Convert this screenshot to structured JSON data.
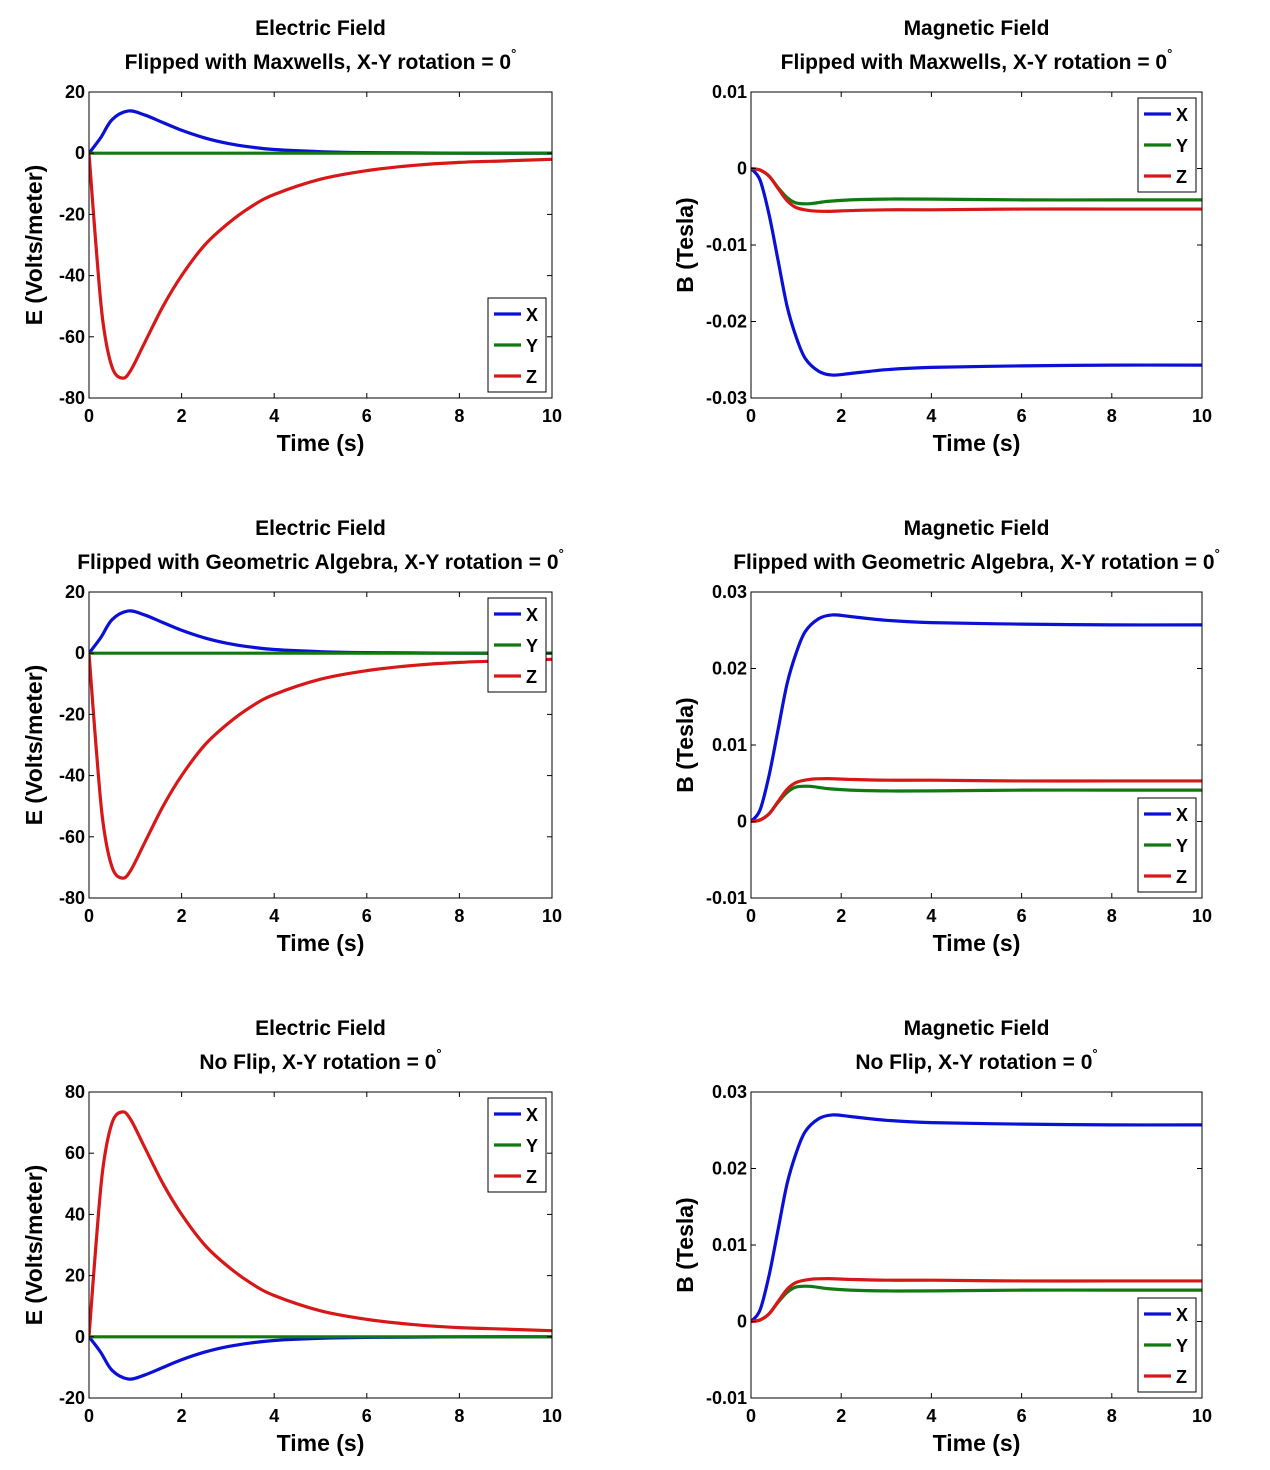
{
  "figure": {
    "colors": {
      "X": "#0a10d6",
      "Y": "#107a10",
      "Z": "#d81818"
    }
  },
  "chart_data": [
    {
      "type": "line",
      "title": "Electric Field",
      "subtitle": "Flipped with Maxwells, X-Y rotation = 0",
      "subtitle_superscript": "°",
      "xlabel": "Time (s)",
      "ylabel": "E (Volts/meter)",
      "xlim": [
        0,
        10
      ],
      "ylim": [
        -80,
        20
      ],
      "xticks": [
        0,
        2,
        4,
        6,
        8,
        10
      ],
      "yticks": [
        20,
        0,
        -20,
        -40,
        -60,
        -80
      ],
      "ytick_labels": [
        "20",
        "0",
        "-20",
        "-40",
        "-60",
        "-80"
      ],
      "legend_position": "bottom-right",
      "series": [
        {
          "name": "X",
          "x": [
            0,
            0.25,
            0.5,
            0.85,
            1.2,
            1.6,
            2,
            2.5,
            3,
            3.5,
            4,
            5,
            6,
            7,
            8,
            10
          ],
          "values": [
            0,
            5,
            11,
            13.8,
            12.5,
            10,
            7.5,
            5,
            3.2,
            2,
            1.2,
            0.5,
            0.2,
            0.1,
            0,
            0
          ]
        },
        {
          "name": "Y",
          "x": [
            0,
            10
          ],
          "values": [
            0,
            0
          ]
        },
        {
          "name": "Z",
          "x": [
            0,
            0.15,
            0.3,
            0.5,
            0.72,
            0.9,
            1.2,
            1.6,
            2,
            2.5,
            3,
            3.5,
            4,
            5,
            6,
            7,
            8,
            9,
            10
          ],
          "values": [
            0,
            -30,
            -55,
            -70,
            -73.5,
            -71,
            -62,
            -50,
            -40,
            -30,
            -23,
            -17.5,
            -13.5,
            -8.5,
            -5.7,
            -4,
            -3,
            -2.5,
            -2
          ]
        }
      ]
    },
    {
      "type": "line",
      "title": "Magnetic Field",
      "subtitle": "Flipped with Maxwells, X-Y rotation = 0",
      "subtitle_superscript": "°",
      "xlabel": "Time (s)",
      "ylabel": "B (Tesla)",
      "xlim": [
        0,
        10
      ],
      "ylim": [
        -0.03,
        0.01
      ],
      "xticks": [
        0,
        2,
        4,
        6,
        8,
        10
      ],
      "yticks": [
        0.01,
        0,
        -0.01,
        -0.02,
        -0.03
      ],
      "ytick_labels": [
        "0.01",
        "0",
        "-0.01",
        "-0.02",
        "-0.03"
      ],
      "legend_position": "top-right",
      "series": [
        {
          "name": "X",
          "x": [
            0,
            0.2,
            0.4,
            0.6,
            0.8,
            1,
            1.2,
            1.5,
            1.8,
            2.2,
            3,
            4,
            6,
            8,
            10
          ],
          "values": [
            0,
            -0.0015,
            -0.006,
            -0.012,
            -0.018,
            -0.022,
            -0.0248,
            -0.0265,
            -0.027,
            -0.0268,
            -0.0263,
            -0.026,
            -0.0258,
            -0.0257,
            -0.0257
          ]
        },
        {
          "name": "Y",
          "x": [
            0,
            0.2,
            0.4,
            0.6,
            0.8,
            1,
            1.3,
            1.7,
            2.2,
            3,
            4,
            6,
            8,
            10
          ],
          "values": [
            0,
            -0.0002,
            -0.001,
            -0.0025,
            -0.0038,
            -0.0045,
            -0.0046,
            -0.0043,
            -0.0041,
            -0.004,
            -0.004,
            -0.0041,
            -0.0041,
            -0.0041
          ]
        },
        {
          "name": "Z",
          "x": [
            0,
            0.2,
            0.4,
            0.6,
            0.8,
            1,
            1.3,
            1.7,
            2.2,
            3,
            4,
            6,
            8,
            10
          ],
          "values": [
            0,
            -0.0002,
            -0.001,
            -0.0026,
            -0.0042,
            -0.0051,
            -0.0055,
            -0.0056,
            -0.0055,
            -0.0054,
            -0.0054,
            -0.0053,
            -0.0053,
            -0.0053
          ]
        }
      ]
    },
    {
      "type": "line",
      "title": "Electric Field",
      "subtitle": "Flipped with Geometric Algebra, X-Y rotation = 0",
      "subtitle_superscript": "°",
      "xlabel": "Time (s)",
      "ylabel": "E (Volts/meter)",
      "xlim": [
        0,
        10
      ],
      "ylim": [
        -80,
        20
      ],
      "xticks": [
        0,
        2,
        4,
        6,
        8,
        10
      ],
      "yticks": [
        20,
        0,
        -20,
        -40,
        -60,
        -80
      ],
      "ytick_labels": [
        "20",
        "0",
        "-20",
        "-40",
        "-60",
        "-80"
      ],
      "legend_position": "top-right",
      "series": [
        {
          "name": "X",
          "x": [
            0,
            0.25,
            0.5,
            0.85,
            1.2,
            1.6,
            2,
            2.5,
            3,
            3.5,
            4,
            5,
            6,
            7,
            8,
            10
          ],
          "values": [
            0,
            5,
            11,
            13.8,
            12.5,
            10,
            7.5,
            5,
            3.2,
            2,
            1.2,
            0.5,
            0.2,
            0.1,
            0,
            0
          ]
        },
        {
          "name": "Y",
          "x": [
            0,
            10
          ],
          "values": [
            0,
            0
          ]
        },
        {
          "name": "Z",
          "x": [
            0,
            0.15,
            0.3,
            0.5,
            0.72,
            0.9,
            1.2,
            1.6,
            2,
            2.5,
            3,
            3.5,
            4,
            5,
            6,
            7,
            8,
            9,
            10
          ],
          "values": [
            0,
            -30,
            -55,
            -70,
            -73.5,
            -71,
            -62,
            -50,
            -40,
            -30,
            -23,
            -17.5,
            -13.5,
            -8.5,
            -5.7,
            -4,
            -3,
            -2.5,
            -2
          ]
        }
      ]
    },
    {
      "type": "line",
      "title": "Magnetic Field",
      "subtitle": "Flipped with Geometric Algebra, X-Y rotation = 0",
      "subtitle_superscript": "°",
      "xlabel": "Time (s)",
      "ylabel": "B (Tesla)",
      "xlim": [
        0,
        10
      ],
      "ylim": [
        -0.01,
        0.03
      ],
      "xticks": [
        0,
        2,
        4,
        6,
        8,
        10
      ],
      "yticks": [
        0.03,
        0.02,
        0.01,
        0,
        -0.01
      ],
      "ytick_labels": [
        "0.03",
        "0.02",
        "0.01",
        "0",
        "-0.01"
      ],
      "legend_position": "bottom-right",
      "series": [
        {
          "name": "X",
          "x": [
            0,
            0.2,
            0.4,
            0.6,
            0.8,
            1,
            1.2,
            1.5,
            1.8,
            2.2,
            3,
            4,
            6,
            8,
            10
          ],
          "values": [
            0,
            0.0015,
            0.006,
            0.012,
            0.018,
            0.022,
            0.0248,
            0.0265,
            0.027,
            0.0268,
            0.0263,
            0.026,
            0.0258,
            0.0257,
            0.0257
          ]
        },
        {
          "name": "Y",
          "x": [
            0,
            0.2,
            0.4,
            0.6,
            0.8,
            1,
            1.3,
            1.7,
            2.2,
            3,
            4,
            6,
            8,
            10
          ],
          "values": [
            0,
            0.0002,
            0.001,
            0.0025,
            0.0038,
            0.0045,
            0.0046,
            0.0043,
            0.0041,
            0.004,
            0.004,
            0.0041,
            0.0041,
            0.0041
          ]
        },
        {
          "name": "Z",
          "x": [
            0,
            0.2,
            0.4,
            0.6,
            0.8,
            1,
            1.3,
            1.7,
            2.2,
            3,
            4,
            6,
            8,
            10
          ],
          "values": [
            0,
            0.0002,
            0.001,
            0.0026,
            0.0042,
            0.0051,
            0.0055,
            0.0056,
            0.0055,
            0.0054,
            0.0054,
            0.0053,
            0.0053,
            0.0053
          ]
        }
      ]
    },
    {
      "type": "line",
      "title": "Electric Field",
      "subtitle": "No Flip, X-Y rotation = 0",
      "subtitle_superscript": "°",
      "xlabel": "Time (s)",
      "ylabel": "E (Volts/meter)",
      "xlim": [
        0,
        10
      ],
      "ylim": [
        -20,
        80
      ],
      "xticks": [
        0,
        2,
        4,
        6,
        8,
        10
      ],
      "yticks": [
        80,
        60,
        40,
        20,
        0,
        -20
      ],
      "ytick_labels": [
        "80",
        "60",
        "40",
        "20",
        "0",
        "-20"
      ],
      "legend_position": "top-right",
      "series": [
        {
          "name": "X",
          "x": [
            0,
            0.25,
            0.5,
            0.85,
            1.2,
            1.6,
            2,
            2.5,
            3,
            3.5,
            4,
            5,
            6,
            7,
            8,
            10
          ],
          "values": [
            0,
            -5,
            -11,
            -13.8,
            -12.5,
            -10,
            -7.5,
            -5,
            -3.2,
            -2,
            -1.2,
            -0.5,
            -0.2,
            -0.1,
            0,
            0
          ]
        },
        {
          "name": "Y",
          "x": [
            0,
            10
          ],
          "values": [
            0,
            0
          ]
        },
        {
          "name": "Z",
          "x": [
            0,
            0.15,
            0.3,
            0.5,
            0.72,
            0.9,
            1.2,
            1.6,
            2,
            2.5,
            3,
            3.5,
            4,
            5,
            6,
            7,
            8,
            9,
            10
          ],
          "values": [
            0,
            30,
            55,
            70,
            73.5,
            71,
            62,
            50,
            40,
            30,
            23,
            17.5,
            13.5,
            8.5,
            5.7,
            4,
            3,
            2.5,
            2
          ]
        }
      ]
    },
    {
      "type": "line",
      "title": "Magnetic Field",
      "subtitle": "No Flip, X-Y rotation = 0",
      "subtitle_superscript": "°",
      "xlabel": "Time (s)",
      "ylabel": "B (Tesla)",
      "xlim": [
        0,
        10
      ],
      "ylim": [
        -0.01,
        0.03
      ],
      "xticks": [
        0,
        2,
        4,
        6,
        8,
        10
      ],
      "yticks": [
        0.03,
        0.02,
        0.01,
        0,
        -0.01
      ],
      "ytick_labels": [
        "0.03",
        "0.02",
        "0.01",
        "0",
        "-0.01"
      ],
      "legend_position": "bottom-right",
      "series": [
        {
          "name": "X",
          "x": [
            0,
            0.2,
            0.4,
            0.6,
            0.8,
            1,
            1.2,
            1.5,
            1.8,
            2.2,
            3,
            4,
            6,
            8,
            10
          ],
          "values": [
            0,
            0.0015,
            0.006,
            0.012,
            0.018,
            0.022,
            0.0248,
            0.0265,
            0.027,
            0.0268,
            0.0263,
            0.026,
            0.0258,
            0.0257,
            0.0257
          ]
        },
        {
          "name": "Y",
          "x": [
            0,
            0.2,
            0.4,
            0.6,
            0.8,
            1,
            1.3,
            1.7,
            2.2,
            3,
            4,
            6,
            8,
            10
          ],
          "values": [
            0,
            0.0002,
            0.001,
            0.0025,
            0.0038,
            0.0045,
            0.0046,
            0.0043,
            0.0041,
            0.004,
            0.004,
            0.0041,
            0.0041,
            0.0041
          ]
        },
        {
          "name": "Z",
          "x": [
            0,
            0.2,
            0.4,
            0.6,
            0.8,
            1,
            1.3,
            1.7,
            2.2,
            3,
            4,
            6,
            8,
            10
          ],
          "values": [
            0,
            0.0002,
            0.001,
            0.0026,
            0.0042,
            0.0051,
            0.0055,
            0.0056,
            0.0055,
            0.0054,
            0.0054,
            0.0053,
            0.0053,
            0.0053
          ]
        }
      ]
    }
  ]
}
